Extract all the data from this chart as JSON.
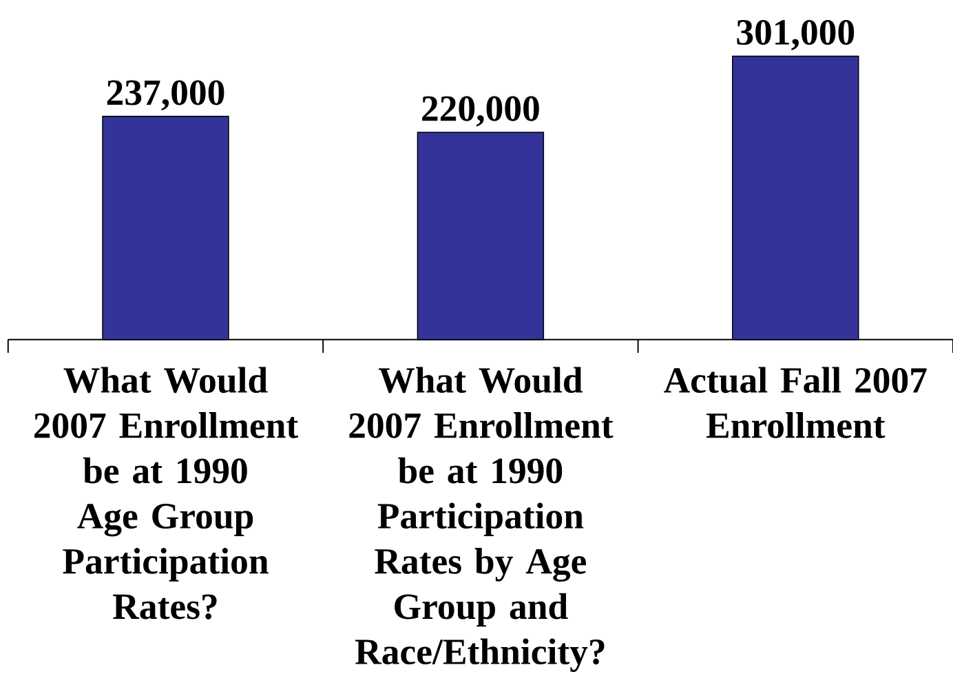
{
  "chart_data": {
    "type": "bar",
    "categories": [
      "What Would 2007 Enrollment be at 1990 Age Group Participation Rates?",
      "What Would 2007 Enrollment be at 1990 Participation Rates by Age Group and Race/Ethnicity?",
      "Actual Fall 2007 Enrollment"
    ],
    "values": [
      237000,
      220000,
      301000
    ],
    "value_labels": [
      "237,000",
      "220,000",
      "301,000"
    ],
    "color": "#333399",
    "tick_labels": "x"
  }
}
